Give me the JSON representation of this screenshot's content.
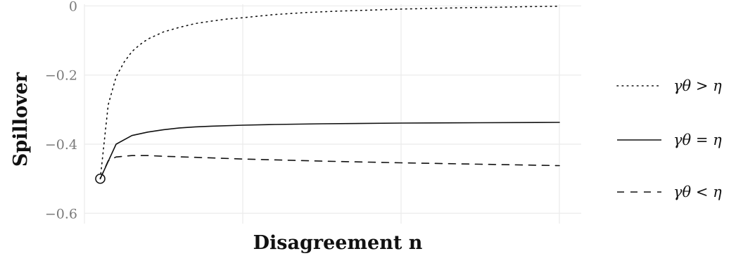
{
  "chart_data": {
    "type": "line",
    "title": "",
    "xlabel": "Disagreement n",
    "ylabel": "Spillover",
    "xlim": [
      0,
      30
    ],
    "ylim": [
      -0.63,
      0.005
    ],
    "y_ticks": [
      0,
      -0.2,
      -0.4,
      -0.6
    ],
    "y_tick_labels": [
      "0",
      "−0.2",
      "−0.4",
      "−0.6"
    ],
    "x_gridlines": [
      10,
      20,
      30
    ],
    "grid": true,
    "legend_position": "right",
    "start_marker": {
      "x": 1,
      "y": -0.5
    },
    "series": [
      {
        "name": "γθ > η",
        "style": "dotted",
        "x": [
          1,
          1.5,
          2,
          2.5,
          3,
          3.5,
          4,
          5,
          6,
          7,
          8,
          9,
          10,
          12,
          14,
          16,
          18,
          20,
          22,
          24,
          26,
          28,
          30
        ],
        "values": [
          -0.5,
          -0.286,
          -0.205,
          -0.163,
          -0.132,
          -0.112,
          -0.096,
          -0.075,
          -0.062,
          -0.051,
          -0.044,
          -0.038,
          -0.034,
          -0.025,
          -0.019,
          -0.015,
          -0.012,
          -0.009,
          -0.007,
          -0.005,
          -0.004,
          -0.002,
          -0.001
        ]
      },
      {
        "name": "γθ = η",
        "style": "solid",
        "x": [
          1,
          2,
          3,
          4,
          5,
          6,
          7,
          8,
          10,
          12,
          15,
          20,
          25,
          30
        ],
        "values": [
          -0.5,
          -0.4,
          -0.375,
          -0.365,
          -0.358,
          -0.353,
          -0.35,
          -0.348,
          -0.345,
          -0.343,
          -0.341,
          -0.339,
          -0.338,
          -0.337
        ]
      },
      {
        "name": "γθ < η",
        "style": "dashed",
        "x": [
          1,
          1.5,
          2,
          3,
          4,
          5,
          7,
          10,
          15,
          20,
          25,
          30
        ],
        "values": [
          -0.5,
          -0.448,
          -0.437,
          -0.433,
          -0.433,
          -0.435,
          -0.438,
          -0.443,
          -0.449,
          -0.454,
          -0.458,
          -0.462
        ]
      }
    ]
  }
}
